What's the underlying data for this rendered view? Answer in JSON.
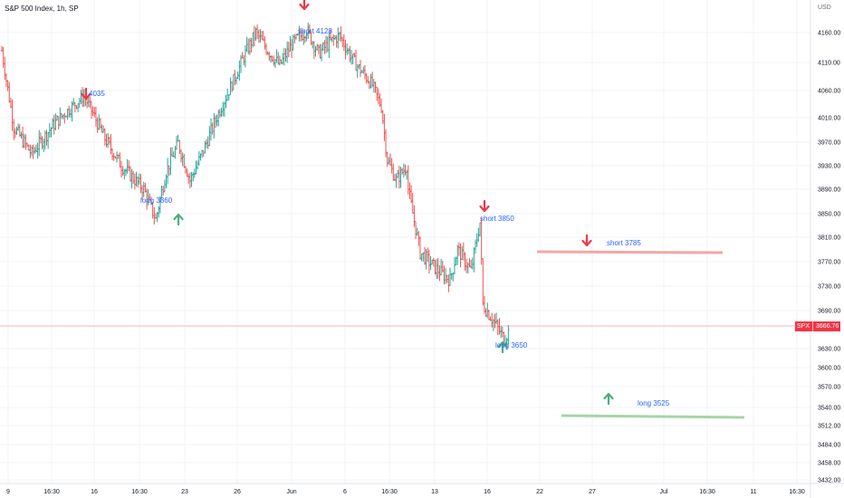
{
  "header": {
    "title": "S&P 500 Index, 1h, SP",
    "currency": "USD"
  },
  "price_badge": {
    "symbol": "SPX",
    "value": "3666.76"
  },
  "colors": {
    "up": "#26a69a",
    "down": "#ef5350",
    "short_arrow": "#f23645",
    "long_arrow": "#4caf7d",
    "annotation_text": "#2962ff",
    "short_line": "#f7a5a5",
    "long_line": "#a5d6a7",
    "price_line": "#f8b6b6"
  },
  "chart_data": {
    "type": "ohlc",
    "title": "S&P 500 Index, 1h, SP",
    "y_ticks": [
      4160,
      4110,
      4060,
      4010,
      3970,
      3930,
      3890,
      3850,
      3810,
      3770,
      3730,
      3690,
      3630,
      3600,
      3570,
      3540,
      3512,
      3484,
      3458,
      3432
    ],
    "y_tick_labels": [
      "4160.00",
      "4110.00",
      "4060.00",
      "4010.00",
      "3970.00",
      "3930.00",
      "3890.00",
      "3850.00",
      "3810.00",
      "3770.00",
      "3730.00",
      "3690.00",
      "3630.00",
      "3600.00",
      "3570.00",
      "3540.00",
      "3512.00",
      "3484.00",
      "3458.00",
      "3432.00"
    ],
    "x_tick_labels": [
      "9",
      "16:30",
      "16",
      "16:30",
      "23",
      "26",
      "Jun",
      "6",
      "16:30",
      "13",
      "16",
      "22",
      "27",
      "Jul",
      "16:30",
      "11",
      "16:30"
    ],
    "last_price": 3666.76,
    "trend_keypoints": [
      {
        "i": 0,
        "p": 4130
      },
      {
        "i": 8,
        "p": 3995
      },
      {
        "i": 20,
        "p": 3950
      },
      {
        "i": 35,
        "p": 4000
      },
      {
        "i": 55,
        "p": 4050
      },
      {
        "i": 68,
        "p": 3980
      },
      {
        "i": 80,
        "p": 3930
      },
      {
        "i": 95,
        "p": 3890
      },
      {
        "i": 103,
        "p": 3840
      },
      {
        "i": 110,
        "p": 3920
      },
      {
        "i": 118,
        "p": 3968
      },
      {
        "i": 126,
        "p": 3905
      },
      {
        "i": 134,
        "p": 3950
      },
      {
        "i": 142,
        "p": 4000
      },
      {
        "i": 152,
        "p": 4060
      },
      {
        "i": 162,
        "p": 4120
      },
      {
        "i": 170,
        "p": 4160
      },
      {
        "i": 178,
        "p": 4130
      },
      {
        "i": 186,
        "p": 4105
      },
      {
        "i": 194,
        "p": 4140
      },
      {
        "i": 204,
        "p": 4165
      },
      {
        "i": 212,
        "p": 4125
      },
      {
        "i": 220,
        "p": 4145
      },
      {
        "i": 226,
        "p": 4155
      },
      {
        "i": 236,
        "p": 4110
      },
      {
        "i": 248,
        "p": 4070
      },
      {
        "i": 254,
        "p": 4030
      },
      {
        "i": 258,
        "p": 3940
      },
      {
        "i": 264,
        "p": 3905
      },
      {
        "i": 271,
        "p": 3930
      },
      {
        "i": 272,
        "p": 3890
      },
      {
        "i": 280,
        "p": 3785
      },
      {
        "i": 290,
        "p": 3760
      },
      {
        "i": 300,
        "p": 3740
      },
      {
        "i": 305,
        "p": 3790
      },
      {
        "i": 314,
        "p": 3755
      },
      {
        "i": 320,
        "p": 3835
      },
      {
        "i": 322,
        "p": 3700
      },
      {
        "i": 330,
        "p": 3670
      },
      {
        "i": 336,
        "p": 3645
      },
      {
        "i": 340,
        "p": 3660
      }
    ],
    "annotations": [
      {
        "kind": "short",
        "label": "4035",
        "price": 4035
      },
      {
        "kind": "long",
        "label": "long  3860",
        "price": 3860
      },
      {
        "kind": "short",
        "label": "short 4128",
        "price": 4128
      },
      {
        "kind": "short",
        "label": "short  3850",
        "price": 3850
      },
      {
        "kind": "long",
        "label": "long 3650",
        "price": 3650
      },
      {
        "kind": "short",
        "label": "short  3785",
        "price": 3785
      },
      {
        "kind": "long",
        "label": "long 3525",
        "price": 3525
      }
    ]
  }
}
